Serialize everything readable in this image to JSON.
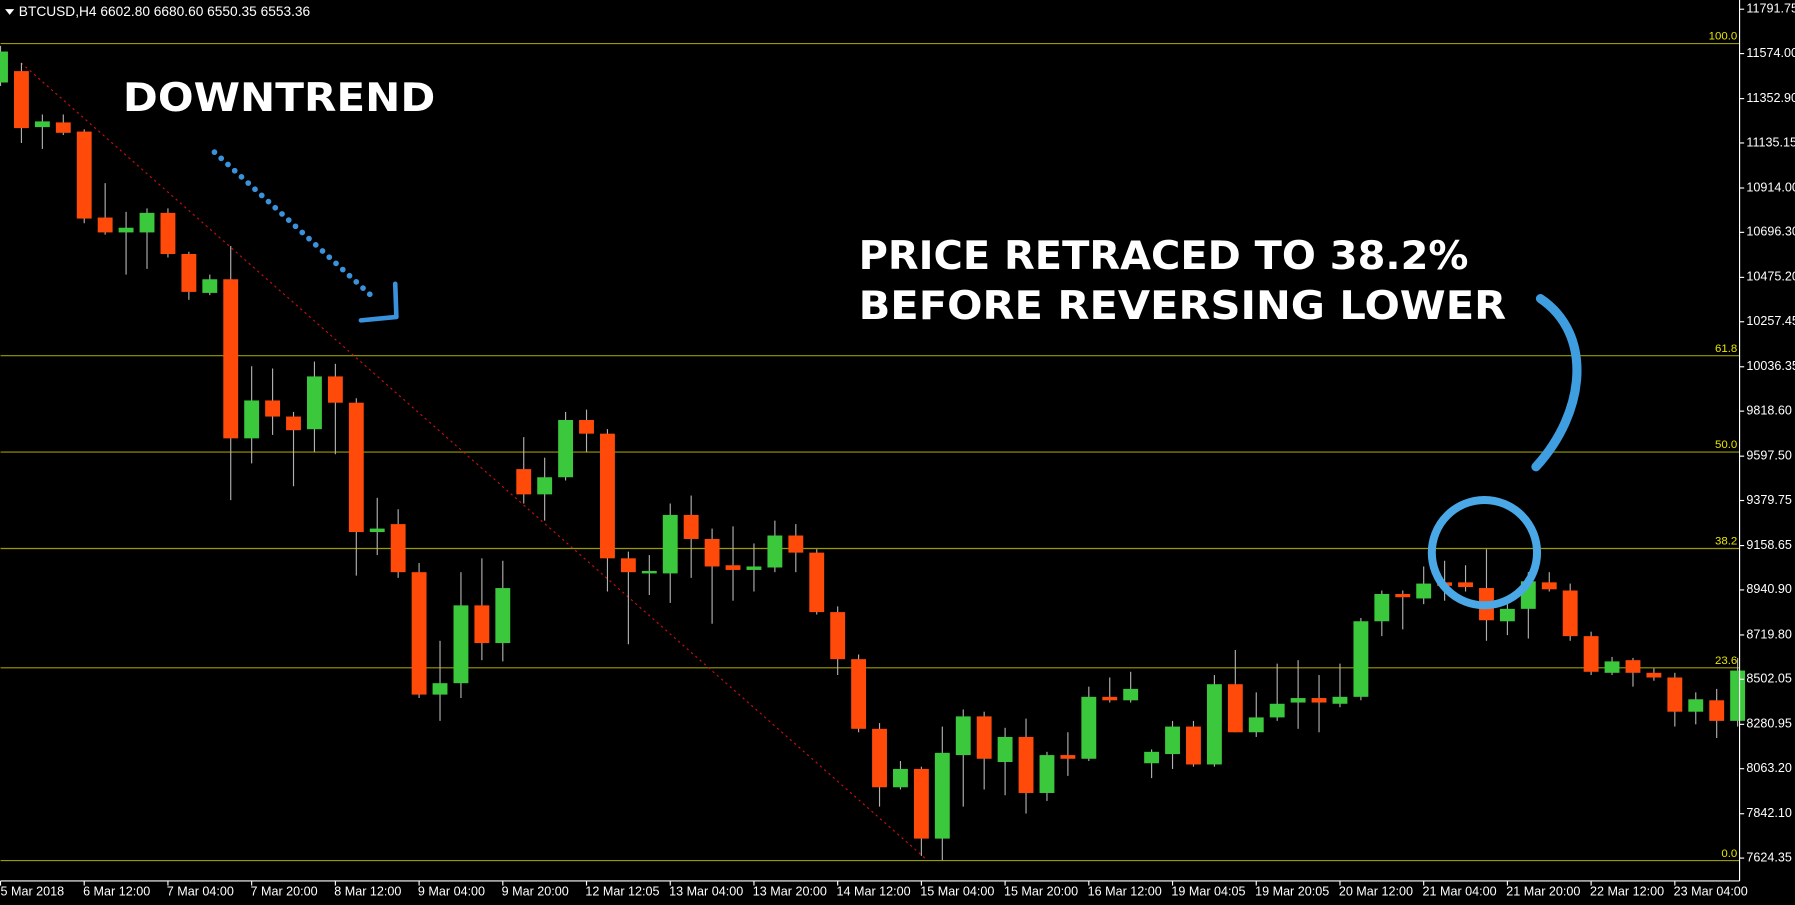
{
  "chart_data": {
    "type": "candlestick",
    "title": "BTCUSD,H4  6602.80 6680.60 6550.35 6553.36",
    "annotations": [
      "DOWNTREND",
      "PRICE RETRACED TO 38.2%",
      "BEFORE REVERSING LOWER"
    ],
    "up_color": "#3cc83c",
    "down_color": "#ff4a0a",
    "fib_color": "#9a9a00",
    "fib_label_color": "#e6e600",
    "categories": [
      "5 Mar 2018",
      null,
      null,
      null,
      "6 Mar 12:00",
      null,
      null,
      null,
      "7 Mar 04:00",
      null,
      null,
      null,
      "7 Mar 20:00",
      null,
      null,
      null,
      "8 Mar 12:00",
      null,
      null,
      null,
      "9 Mar 04:00",
      null,
      null,
      null,
      "9 Mar 20:00",
      null,
      null,
      null,
      "12 Mar 12:05",
      null,
      null,
      null,
      "13 Mar 04:00",
      null,
      null,
      null,
      "13 Mar 20:00",
      null,
      null,
      null,
      "14 Mar 12:00",
      null,
      null,
      null,
      "15 Mar 04:00",
      null,
      null,
      null,
      "15 Mar 20:00",
      null,
      null,
      null,
      "16 Mar 12:00",
      null,
      null,
      null,
      "19 Mar 04:05",
      null,
      null,
      null,
      "19 Mar 20:05",
      null,
      null,
      null,
      "20 Mar 12:00",
      null,
      null,
      null,
      "21 Mar 04:00",
      null,
      null,
      null,
      "21 Mar 20:00",
      null,
      null,
      null,
      "22 Mar 12:00",
      null,
      null,
      null,
      "23 Mar 04:00",
      null,
      null,
      null
    ],
    "open": [
      11432,
      11488,
      11213,
      11236,
      11191,
      10769,
      10696,
      10696,
      10792,
      10590,
      10399,
      10466,
      9685,
      9871,
      9792,
      9730,
      9989,
      9860,
      9225,
      9264,
      9028,
      8427,
      8483,
      8865,
      8680,
      9534,
      9410,
      9494,
      9775,
      9708,
      9096,
      9022,
      9022,
      9309,
      9191,
      9062,
      9039,
      9051,
      9208,
      9124,
      8832,
      8601,
      8259,
      7972,
      8062,
      7720,
      8130,
      8320,
      8096,
      8219,
      7944,
      8130,
      8112,
      8416,
      8399,
      8090,
      8135,
      8270,
      8084,
      8478,
      8242,
      8315,
      8388,
      8410,
      8382,
      8416,
      8787,
      8921,
      8899,
      8978,
      8978,
      8950,
      8787,
      8848,
      8978,
      8938,
      8714,
      8534,
      8596,
      8534,
      8511,
      8343,
      8399,
      8298
    ],
    "high": [
      11612,
      11528,
      11275,
      11275,
      11202,
      10938,
      10797,
      10814,
      10814,
      10601,
      10489,
      10629,
      10039,
      10028,
      9815,
      10062,
      10051,
      9882,
      9393,
      9337,
      9073,
      8691,
      9028,
      9096,
      9084,
      9691,
      9590,
      9815,
      9826,
      9730,
      9129,
      9112,
      9365,
      9404,
      9242,
      9253,
      9169,
      9281,
      9264,
      9141,
      8860,
      8624,
      8287,
      8101,
      8073,
      8270,
      8354,
      8343,
      8264,
      8309,
      8146,
      8242,
      8466,
      8511,
      8539,
      8158,
      8298,
      8298,
      8523,
      8646,
      8438,
      8579,
      8596,
      8523,
      8579,
      8803,
      8938,
      8938,
      9056,
      9084,
      9062,
      9141,
      8871,
      9028,
      9028,
      8972,
      8736,
      8612,
      8607,
      8556,
      8534,
      8438,
      8455,
      8607
    ],
    "low": [
      11415,
      11135,
      11106,
      11174,
      10741,
      10685,
      10489,
      10517,
      10573,
      10365,
      10388,
      9382,
      9562,
      9702,
      9450,
      9618,
      9607,
      9011,
      9112,
      9000,
      8410,
      8298,
      8410,
      8596,
      8590,
      9365,
      9281,
      9478,
      9618,
      8933,
      8674,
      8916,
      8877,
      9000,
      8775,
      8888,
      8933,
      9028,
      9028,
      8820,
      8523,
      8242,
      7877,
      7961,
      7635,
      7613,
      7877,
      7961,
      7933,
      7843,
      7905,
      8028,
      8101,
      8388,
      8388,
      8017,
      8062,
      8073,
      8073,
      8242,
      8219,
      8298,
      8259,
      8242,
      8365,
      8399,
      8714,
      8747,
      8871,
      8888,
      8933,
      8691,
      8719,
      8702,
      8933,
      8691,
      8523,
      8523,
      8466,
      8495,
      8270,
      8281,
      8214,
      8270
    ],
    "close": [
      11584,
      11208,
      11241,
      11185,
      10764,
      10696,
      10719,
      10792,
      10590,
      10404,
      10466,
      9685,
      9871,
      9792,
      9725,
      9989,
      9860,
      9225,
      9242,
      9028,
      8427,
      8483,
      8865,
      8680,
      8950,
      9410,
      9494,
      9775,
      9708,
      9096,
      9028,
      9034,
      9309,
      9191,
      9056,
      9039,
      9056,
      9208,
      9124,
      8832,
      8601,
      8259,
      7972,
      8062,
      7720,
      8141,
      8320,
      8112,
      8219,
      7944,
      8130,
      8112,
      8416,
      8399,
      8455,
      8146,
      8270,
      8084,
      8478,
      8242,
      8315,
      8382,
      8410,
      8388,
      8416,
      8787,
      8921,
      8905,
      8972,
      8961,
      8955,
      8792,
      8848,
      8983,
      8944,
      8714,
      8539,
      8590,
      8534,
      8511,
      8343,
      8404,
      8298,
      8545
    ],
    "ylim": [
      7512,
      11837
    ],
    "yticks": [
      11791.75,
      {
        "value": 11574,
        "label": "11574.00"
      },
      {
        "value": 11352.9,
        "label": "11352.90"
      },
      11135.15,
      {
        "value": 10914,
        "label": "10914.00"
      },
      {
        "value": 10696.3,
        "label": "10696.30"
      },
      {
        "value": 10475.2,
        "label": "10475.20"
      },
      10257.45,
      10036.35,
      {
        "value": 9818.6,
        "label": "9818.60"
      },
      {
        "value": 9597.5,
        "label": "9597.50"
      },
      9379.75,
      9158.65,
      {
        "value": 8940.9,
        "label": "8940.90"
      },
      {
        "value": 8719.8,
        "label": "8719.80"
      },
      8502.05,
      8280.95,
      {
        "value": 8063.2,
        "label": "8063.20"
      },
      {
        "value": 7842.1,
        "label": "7842.10"
      },
      7624.35
    ],
    "fib": {
      "low": 7612,
      "high": 11623,
      "levels": [
        {
          "value": 100,
          "label": "100.0"
        },
        61.8,
        {
          "value": 50,
          "label": "50.0"
        },
        38.2,
        23.6,
        {
          "value": 0,
          "label": "0.0"
        }
      ]
    }
  }
}
